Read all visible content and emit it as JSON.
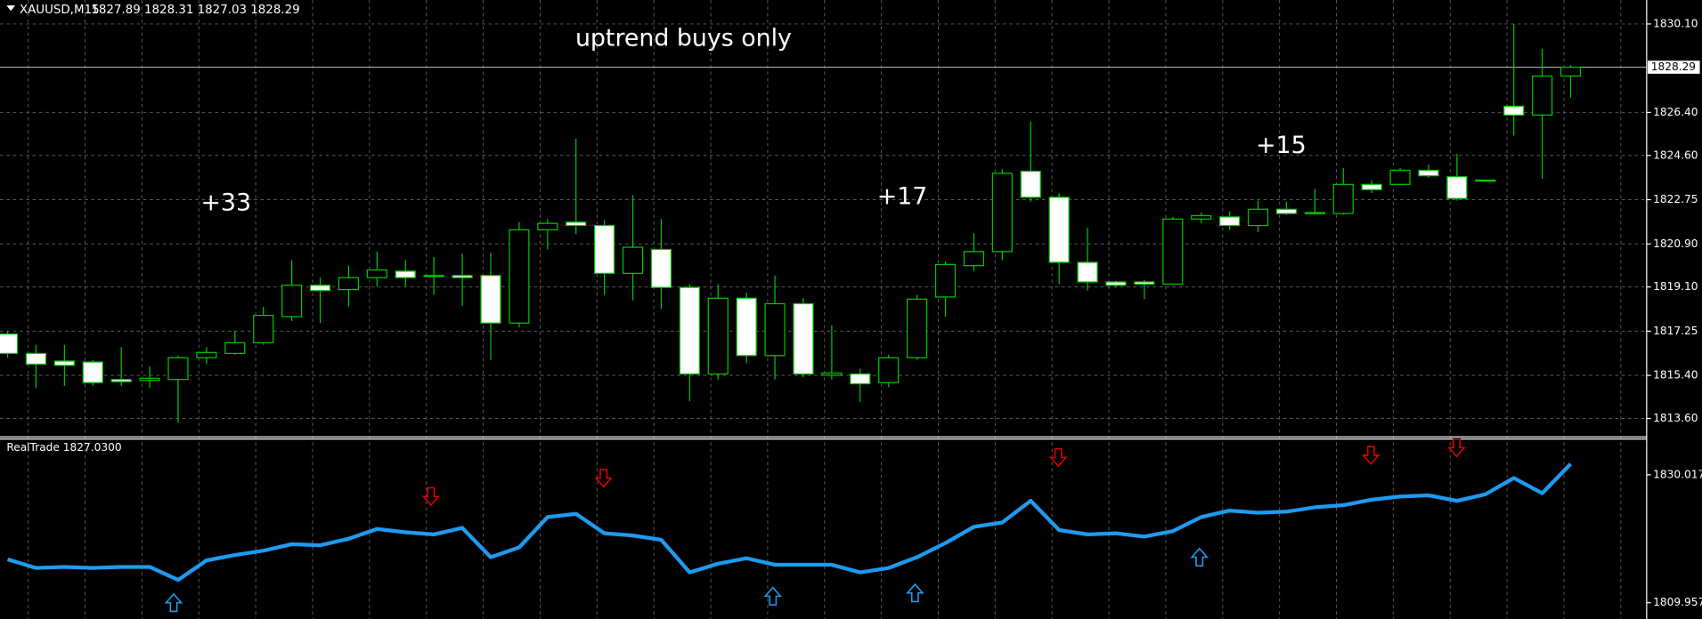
{
  "chart_data": {
    "type": "candlestick",
    "title": "XAUUSD,M15",
    "ohlc_label": "1827.89 1828.31 1827.03 1828.29",
    "annotation_main": "uptrend buys only",
    "annotation_1": "+33",
    "annotation_2": "+17",
    "annotation_3": "+15",
    "open": [
      1817.13,
      1816.32,
      1816.0,
      1815.96,
      1815.23,
      1815.19,
      1815.23,
      1816.14,
      1816.32,
      1816.77,
      1817.86,
      1819.17,
      1818.99,
      1819.49,
      1819.76,
      1819.58,
      1819.58,
      1819.58,
      1817.59,
      1821.49,
      1821.81,
      1821.67,
      1819.67,
      1820.67,
      1819.08,
      1815.46,
      1818.63,
      1816.23,
      1818.4,
      1815.41,
      1815.46,
      1815.1,
      1816.14,
      1818.68,
      1819.99,
      1820.58,
      1823.94,
      1822.85,
      1820.13,
      1819.31,
      1819.31,
      1819.22,
      1821.94,
      1822.03,
      1821.67,
      1822.35,
      1822.17,
      1822.17,
      1823.39,
      1823.39,
      1823.98,
      1823.71,
      1823.53,
      1826.66,
      1826.29,
      1827.92
    ],
    "high": [
      1817.27,
      1816.68,
      1816.68,
      1816.05,
      1816.59,
      1815.78,
      1816.23,
      1816.59,
      1817.27,
      1818.27,
      1820.22,
      1819.49,
      1819.99,
      1820.58,
      1820.22,
      1820.35,
      1820.49,
      1820.53,
      1821.81,
      1821.94,
      1825.3,
      1821.9,
      1822.94,
      1821.94,
      1819.22,
      1819.22,
      1818.86,
      1819.58,
      1818.63,
      1817.5,
      1815.69,
      1816.27,
      1818.77,
      1820.17,
      1821.35,
      1824.03,
      1826.02,
      1823.03,
      1821.58,
      1819.36,
      1819.4,
      1822.03,
      1822.21,
      1822.26,
      1822.71,
      1822.67,
      1823.21,
      1824.07,
      1823.57,
      1824.07,
      1824.21,
      1824.66,
      1823.57,
      1830.1,
      1829.06,
      1828.38
    ],
    "low": [
      1816.14,
      1814.87,
      1814.96,
      1814.96,
      1814.96,
      1814.87,
      1813.42,
      1815.87,
      1816.27,
      1816.68,
      1817.68,
      1817.59,
      1818.27,
      1819.13,
      1819.13,
      1818.77,
      1818.31,
      1816.05,
      1817.41,
      1820.67,
      1821.31,
      1818.77,
      1818.54,
      1818.18,
      1814.32,
      1815.23,
      1815.91,
      1815.23,
      1815.32,
      1815.23,
      1814.28,
      1814.91,
      1816.05,
      1817.86,
      1819.76,
      1820.22,
      1822.67,
      1819.22,
      1818.95,
      1819.08,
      1818.59,
      1819.22,
      1821.76,
      1821.49,
      1821.4,
      1822.12,
      1822.12,
      1822.12,
      1823.03,
      1823.35,
      1823.66,
      1822.71,
      1823.53,
      1825.43,
      1823.62,
      1827.02
    ],
    "close": [
      1816.32,
      1815.87,
      1815.82,
      1815.1,
      1815.14,
      1815.28,
      1816.14,
      1816.36,
      1816.77,
      1817.91,
      1819.17,
      1818.95,
      1819.49,
      1819.81,
      1819.49,
      1819.54,
      1819.49,
      1817.59,
      1821.49,
      1821.76,
      1821.67,
      1819.67,
      1820.76,
      1819.08,
      1815.46,
      1818.63,
      1816.23,
      1818.4,
      1815.46,
      1815.5,
      1815.05,
      1816.14,
      1818.59,
      1820.04,
      1820.58,
      1823.85,
      1822.85,
      1820.13,
      1819.31,
      1819.17,
      1819.22,
      1821.94,
      1822.08,
      1821.67,
      1822.35,
      1822.17,
      1822.21,
      1823.39,
      1823.17,
      1823.98,
      1823.75,
      1822.8,
      1823.57,
      1826.29,
      1827.92,
      1828.29
    ],
    "ylim": [
      1812.83,
      1831.1
    ],
    "yticks": [
      {
        "value": 1830.1,
        "label": "1830.10"
      },
      {
        "value": 1826.4,
        "label": "1826.40"
      },
      {
        "value": 1824.6,
        "label": "1824.60"
      },
      1822.75,
      {
        "value": 1820.9,
        "label": "1820.90"
      },
      {
        "value": 1819.1,
        "label": "1819.10"
      },
      1817.25,
      {
        "value": 1815.4,
        "label": "1815.40"
      },
      {
        "value": 1813.6,
        "label": "1813.60"
      }
    ],
    "price_line": 1828.29,
    "grid": true,
    "wick_color": "#00c800",
    "bull_fill": "#000000",
    "bear_fill": "#ffffff",
    "indicator": {
      "name": "RealTrade 1827.0300",
      "color": "#1e9bf0",
      "axis": "y2",
      "values": [
        1816.76,
        1815.4,
        1815.57,
        1815.4,
        1815.57,
        1815.57,
        1813.53,
        1816.59,
        1817.44,
        1818.12,
        1819.14,
        1818.97,
        1819.99,
        1821.52,
        1821.01,
        1820.67,
        1821.69,
        1817.1,
        1818.63,
        1823.39,
        1823.9,
        1820.84,
        1820.5,
        1819.82,
        1814.72,
        1816.08,
        1816.93,
        1815.91,
        1815.91,
        1815.91,
        1814.72,
        1815.4,
        1817.1,
        1819.31,
        1821.86,
        1822.54,
        1825.94,
        1821.35,
        1820.67,
        1820.84,
        1820.33,
        1821.18,
        1823.39,
        1824.41,
        1824.07,
        1824.24,
        1824.92,
        1825.26,
        1826.11,
        1826.62,
        1826.79,
        1825.94,
        1826.96,
        1829.51,
        1827.13,
        1831.72
      ]
    },
    "y2lim": [
      1807.41,
      1835.63
    ],
    "y2ticks": [
      1830.017,
      1809.957
    ]
  }
}
